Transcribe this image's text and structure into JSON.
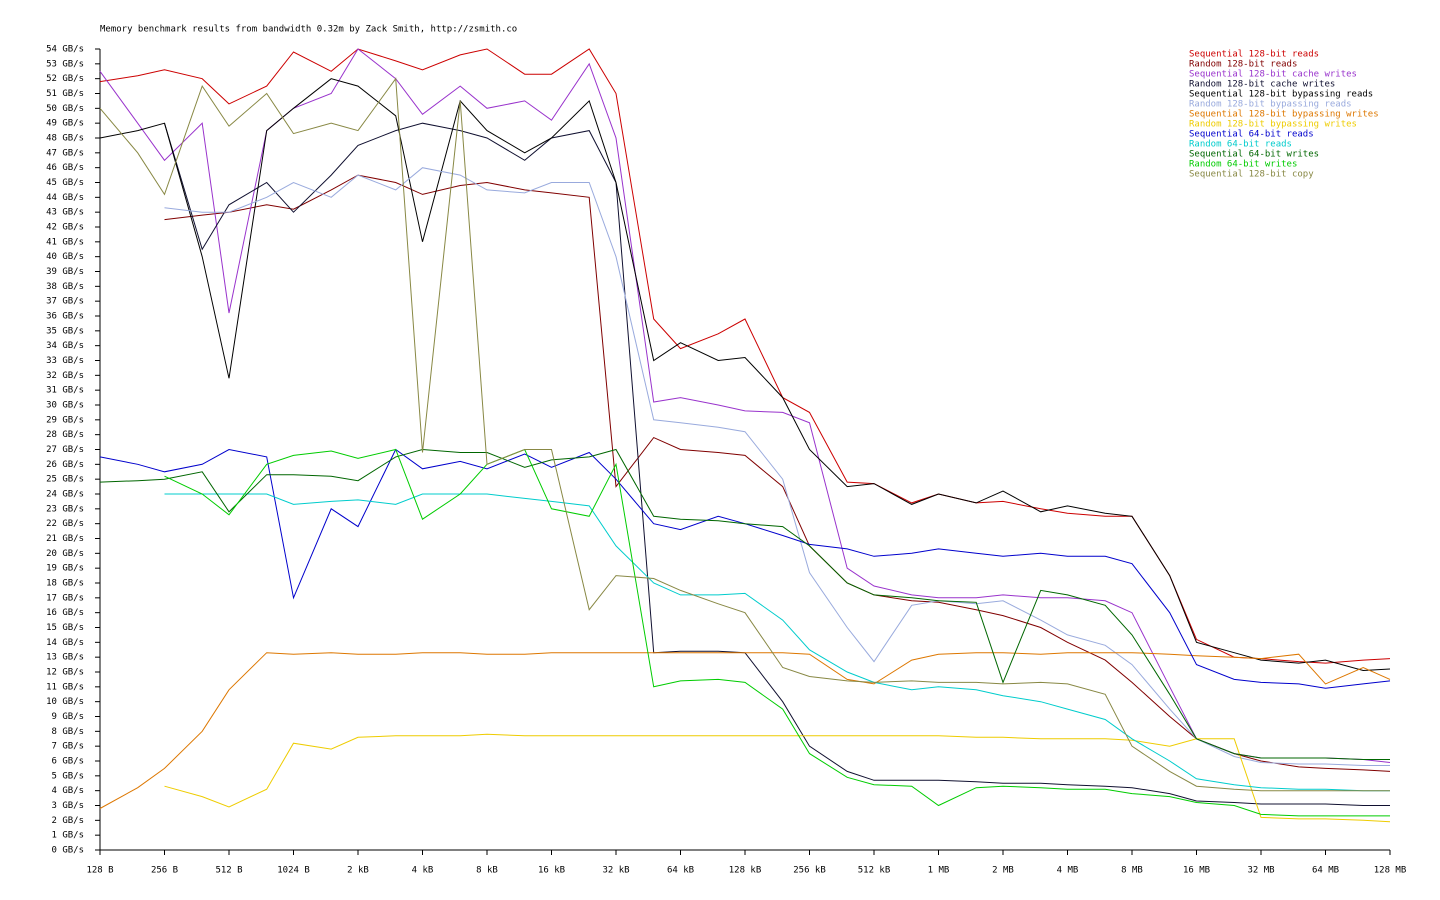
{
  "chart_data": {
    "type": "line",
    "title": "Memory benchmark results from bandwidth 0.32m by Zack Smith, http://zsmith.co",
    "xscale": "log",
    "legend": "top-right",
    "grid": false,
    "x": [
      128,
      192,
      256,
      384,
      512,
      768,
      1024,
      1536,
      2048,
      3072,
      4096,
      6144,
      8192,
      12288,
      16384,
      24576,
      32768,
      49152,
      65536,
      98304,
      131072,
      196608,
      262144,
      393216,
      524288,
      786432,
      1048576,
      1572864,
      2097152,
      3145728,
      4194304,
      6291456,
      8388608,
      12582912,
      16777216,
      25165824,
      33554432,
      50331648,
      67108864,
      100663296,
      134217728
    ],
    "xlim": [
      128,
      134217728
    ],
    "xticks": [
      {
        "value": 128,
        "label": "128 B"
      },
      {
        "value": 256,
        "label": "256 B"
      },
      {
        "value": 512,
        "label": "512 B"
      },
      {
        "value": 1024,
        "label": "1024 B"
      },
      {
        "value": 2048,
        "label": "2 kB"
      },
      {
        "value": 4096,
        "label": "4 kB"
      },
      {
        "value": 8192,
        "label": "8 kB"
      },
      {
        "value": 16384,
        "label": "16 kB"
      },
      {
        "value": 32768,
        "label": "32 kB"
      },
      {
        "value": 65536,
        "label": "64 kB"
      },
      {
        "value": 131072,
        "label": "128 kB"
      },
      {
        "value": 262144,
        "label": "256 kB"
      },
      {
        "value": 524288,
        "label": "512 kB"
      },
      {
        "value": 1048576,
        "label": "1 MB"
      },
      {
        "value": 2097152,
        "label": "2 MB"
      },
      {
        "value": 4194304,
        "label": "4 MB"
      },
      {
        "value": 8388608,
        "label": "8 MB"
      },
      {
        "value": 16777216,
        "label": "16 MB"
      },
      {
        "value": 33554432,
        "label": "32 MB"
      },
      {
        "value": 67108864,
        "label": "64 MB"
      },
      {
        "value": 134217728,
        "label": "128 MB"
      }
    ],
    "ylim": [
      0,
      54
    ],
    "yticks": [
      {
        "value": 0,
        "label": "0 GB/s"
      },
      {
        "value": 1,
        "label": "1 GB/s"
      },
      {
        "value": 2,
        "label": "2 GB/s"
      },
      {
        "value": 3,
        "label": "3 GB/s"
      },
      {
        "value": 4,
        "label": "4 GB/s"
      },
      {
        "value": 5,
        "label": "5 GB/s"
      },
      {
        "value": 6,
        "label": "6 GB/s"
      },
      {
        "value": 7,
        "label": "7 GB/s"
      },
      {
        "value": 8,
        "label": "8 GB/s"
      },
      {
        "value": 9,
        "label": "9 GB/s"
      },
      {
        "value": 10,
        "label": "10 GB/s"
      },
      {
        "value": 11,
        "label": "11 GB/s"
      },
      {
        "value": 12,
        "label": "12 GB/s"
      },
      {
        "value": 13,
        "label": "13 GB/s"
      },
      {
        "value": 14,
        "label": "14 GB/s"
      },
      {
        "value": 15,
        "label": "15 GB/s"
      },
      {
        "value": 16,
        "label": "16 GB/s"
      },
      {
        "value": 17,
        "label": "17 GB/s"
      },
      {
        "value": 18,
        "label": "18 GB/s"
      },
      {
        "value": 19,
        "label": "19 GB/s"
      },
      {
        "value": 20,
        "label": "20 GB/s"
      },
      {
        "value": 21,
        "label": "21 GB/s"
      },
      {
        "value": 22,
        "label": "22 GB/s"
      },
      {
        "value": 23,
        "label": "23 GB/s"
      },
      {
        "value": 24,
        "label": "24 GB/s"
      },
      {
        "value": 25,
        "label": "25 GB/s"
      },
      {
        "value": 26,
        "label": "26 GB/s"
      },
      {
        "value": 27,
        "label": "27 GB/s"
      },
      {
        "value": 28,
        "label": "28 GB/s"
      },
      {
        "value": 29,
        "label": "29 GB/s"
      },
      {
        "value": 30,
        "label": "30 GB/s"
      },
      {
        "value": 31,
        "label": "31 GB/s"
      },
      {
        "value": 32,
        "label": "32 GB/s"
      },
      {
        "value": 33,
        "label": "33 GB/s"
      },
      {
        "value": 34,
        "label": "34 GB/s"
      },
      {
        "value": 35,
        "label": "35 GB/s"
      },
      {
        "value": 36,
        "label": "36 GB/s"
      },
      {
        "value": 37,
        "label": "37 GB/s"
      },
      {
        "value": 38,
        "label": "38 GB/s"
      },
      {
        "value": 39,
        "label": "39 GB/s"
      },
      {
        "value": 40,
        "label": "40 GB/s"
      },
      {
        "value": 41,
        "label": "41 GB/s"
      },
      {
        "value": 42,
        "label": "42 GB/s"
      },
      {
        "value": 43,
        "label": "43 GB/s"
      },
      {
        "value": 44,
        "label": "44 GB/s"
      },
      {
        "value": 45,
        "label": "45 GB/s"
      },
      {
        "value": 46,
        "label": "46 GB/s"
      },
      {
        "value": 47,
        "label": "47 GB/s"
      },
      {
        "value": 48,
        "label": "48 GB/s"
      },
      {
        "value": 49,
        "label": "49 GB/s"
      },
      {
        "value": 50,
        "label": "50 GB/s"
      },
      {
        "value": 51,
        "label": "51 GB/s"
      },
      {
        "value": 52,
        "label": "52 GB/s"
      },
      {
        "value": 53,
        "label": "53 GB/s"
      },
      {
        "value": 54,
        "label": "54 GB/s"
      }
    ],
    "series": [
      {
        "name": "Sequential 128-bit reads",
        "color": "#cc0000",
        "values": [
          51.8,
          52.2,
          52.6,
          52,
          50.3,
          51.5,
          53.8,
          52.5,
          54,
          53.2,
          52.6,
          53.6,
          54,
          52.3,
          52.3,
          54,
          51,
          35.8,
          33.8,
          34.8,
          35.8,
          30.5,
          29.5,
          24.8,
          24.7,
          23.4,
          24,
          23.4,
          23.5,
          23,
          22.7,
          22.5,
          22.5,
          18.5,
          14.2,
          13,
          12.9,
          12.7,
          12.6,
          12.8,
          12.9
        ]
      },
      {
        "name": "Random 128-bit reads",
        "color": "#800000",
        "values": [
          null,
          null,
          42.5,
          42.8,
          43,
          43.5,
          43.2,
          44.5,
          45.5,
          45,
          44.2,
          44.8,
          45,
          44.5,
          44.3,
          44,
          24.5,
          27.8,
          27,
          26.8,
          26.6,
          24.5,
          20.5,
          18,
          17.2,
          16.8,
          16.7,
          16.2,
          15.8,
          15,
          14,
          12.8,
          11.3,
          9,
          7.5,
          6.5,
          6,
          5.6,
          5.5,
          5.4,
          5.3
        ]
      },
      {
        "name": "Sequential 128-bit cache writes",
        "color": "#9933cc",
        "values": [
          52.5,
          49,
          46.5,
          49,
          36.2,
          48.5,
          50,
          51,
          54,
          52,
          49.6,
          51.5,
          50,
          50.5,
          49.2,
          53,
          48,
          30.2,
          30.5,
          30,
          29.6,
          29.5,
          28.8,
          19,
          17.8,
          17.2,
          17,
          17,
          17.2,
          17,
          17,
          16.8,
          16,
          11,
          7.5,
          6.5,
          6.2,
          6.2,
          6.2,
          6.1,
          5.9
        ]
      },
      {
        "name": "Random 128-bit cache writes",
        "color": "#101030",
        "values": [
          null,
          null,
          49,
          40.5,
          43.5,
          45,
          43,
          45.5,
          47.5,
          48.5,
          49,
          48.5,
          48,
          46.5,
          48,
          48.5,
          45,
          13.3,
          13.4,
          13.4,
          13.3,
          10,
          7,
          5.3,
          4.7,
          4.7,
          4.7,
          4.6,
          4.5,
          4.5,
          4.4,
          4.3,
          4.2,
          3.8,
          3.3,
          3.2,
          3.1,
          3.1,
          3.1,
          3,
          3
        ]
      },
      {
        "name": "Sequential 128-bit bypassing reads",
        "color": "#000000",
        "values": [
          48,
          48.5,
          49,
          40,
          31.8,
          48.5,
          50,
          52,
          51.5,
          49.5,
          41,
          50.5,
          48.5,
          47,
          48,
          50.5,
          45,
          33,
          34.2,
          33,
          33.2,
          30.5,
          27,
          24.5,
          24.7,
          23.3,
          24,
          23.4,
          24.2,
          22.8,
          23.2,
          22.7,
          22.5,
          18.5,
          14,
          13.3,
          12.8,
          12.6,
          12.8,
          12.1,
          12.2
        ]
      },
      {
        "name": "Random 128-bit bypassing reads",
        "color": "#99aadd",
        "values": [
          null,
          null,
          43.3,
          43,
          43,
          44,
          45,
          44,
          45.5,
          44.5,
          46,
          45.5,
          44.5,
          44.3,
          45,
          45,
          40,
          29,
          28.8,
          28.5,
          28.2,
          25,
          18.7,
          15,
          12.7,
          16.5,
          16.8,
          16.6,
          16.8,
          15.5,
          14.5,
          13.8,
          12.5,
          9.5,
          7.5,
          6.3,
          5.9,
          5.8,
          5.8,
          5.7,
          5.7
        ]
      },
      {
        "name": "Sequential 128-bit bypassing writes",
        "color": "#dd7700",
        "values": [
          2.8,
          4.2,
          5.5,
          8,
          10.8,
          13.3,
          13.2,
          13.3,
          13.2,
          13.2,
          13.3,
          13.3,
          13.2,
          13.2,
          13.3,
          13.3,
          13.3,
          13.3,
          13.3,
          13.3,
          13.3,
          13.3,
          13.2,
          11.5,
          11.2,
          12.8,
          13.2,
          13.3,
          13.3,
          13.2,
          13.3,
          13.3,
          13.3,
          13.2,
          13.1,
          13,
          12.9,
          13.2,
          11.2,
          12.3,
          11.5
        ]
      },
      {
        "name": "Random 128-bit bypassing writes",
        "color": "#eecc00",
        "values": [
          null,
          null,
          4.3,
          3.6,
          2.9,
          4.1,
          7.2,
          6.8,
          7.6,
          7.7,
          7.7,
          7.7,
          7.8,
          7.7,
          7.7,
          7.7,
          7.7,
          7.7,
          7.7,
          7.7,
          7.7,
          7.7,
          7.7,
          7.7,
          7.7,
          7.7,
          7.7,
          7.6,
          7.6,
          7.5,
          7.5,
          7.5,
          7.4,
          7,
          7.5,
          7.5,
          2.2,
          2.1,
          2.1,
          2,
          1.9
        ]
      },
      {
        "name": "Sequential 64-bit reads",
        "color": "#0000cc",
        "values": [
          26.5,
          26,
          25.5,
          26,
          27,
          26.5,
          17,
          23,
          21.8,
          27,
          25.7,
          26.2,
          25.7,
          26.7,
          25.8,
          26.8,
          25,
          22,
          21.6,
          22.5,
          22,
          21.2,
          20.6,
          20.3,
          19.8,
          20,
          20.3,
          20,
          19.8,
          20,
          19.8,
          19.8,
          19.3,
          16,
          12.5,
          11.5,
          11.3,
          11.2,
          10.9,
          11.2,
          11.4
        ]
      },
      {
        "name": "Random 64-bit reads",
        "color": "#00cccc",
        "values": [
          null,
          null,
          24,
          24,
          24,
          24,
          23.3,
          23.5,
          23.6,
          23.3,
          24,
          24,
          24,
          23.7,
          23.5,
          23.2,
          20.5,
          18,
          17.2,
          17.2,
          17.3,
          15.5,
          13.5,
          12,
          11.3,
          10.8,
          11,
          10.8,
          10.4,
          10,
          9.5,
          8.8,
          7.5,
          6,
          4.8,
          4.4,
          4.2,
          4.1,
          4.1,
          4,
          4
        ]
      },
      {
        "name": "Sequential 64-bit writes",
        "color": "#006600",
        "values": [
          24.8,
          24.9,
          25,
          25.5,
          22.8,
          25.3,
          25.3,
          25.2,
          24.9,
          26.5,
          27,
          26.8,
          26.8,
          25.8,
          26.3,
          26.5,
          27,
          22.5,
          22.3,
          22.2,
          22,
          21.8,
          20.5,
          18,
          17.2,
          17,
          16.8,
          16.7,
          11.3,
          17.5,
          17.2,
          16.5,
          14.5,
          10.5,
          7.5,
          6.5,
          6.2,
          6.2,
          6.2,
          6.1,
          6.1
        ]
      },
      {
        "name": "Random 64-bit writes",
        "color": "#00cc00",
        "values": [
          null,
          null,
          25.2,
          24,
          22.6,
          26,
          26.6,
          26.9,
          26.4,
          27,
          22.3,
          24,
          26,
          27,
          23,
          22.5,
          26,
          11,
          11.4,
          11.5,
          11.3,
          9.5,
          6.5,
          4.9,
          4.4,
          4.3,
          3,
          4.2,
          4.3,
          4.2,
          4.1,
          4.1,
          3.8,
          3.6,
          3.2,
          3,
          2.4,
          2.3,
          2.3,
          2.3,
          2.3
        ]
      },
      {
        "name": "Sequential 128-bit copy",
        "color": "#888844",
        "values": [
          50,
          47,
          44.2,
          51.5,
          48.8,
          51,
          48.3,
          49,
          48.5,
          52,
          26.8,
          50.5,
          26,
          27,
          27,
          16.2,
          18.5,
          18.3,
          17.5,
          16.6,
          16,
          12.3,
          11.7,
          11.4,
          11.3,
          11.4,
          11.3,
          11.3,
          11.2,
          11.3,
          11.2,
          10.5,
          7,
          5.3,
          4.3,
          4.1,
          4,
          4,
          4,
          4,
          4
        ]
      }
    ]
  }
}
